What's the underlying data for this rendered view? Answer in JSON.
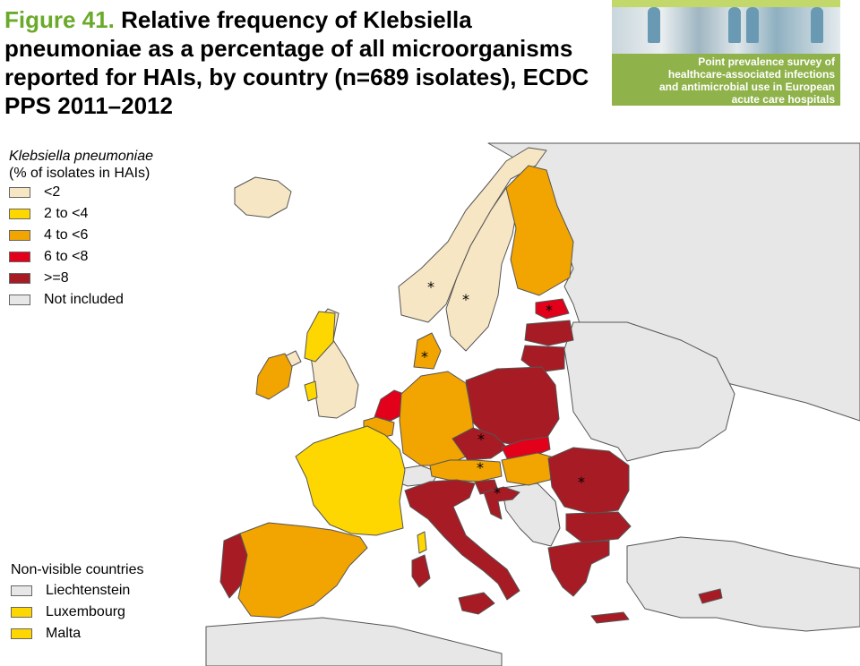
{
  "title": {
    "figure_label": "Figure 41.",
    "text": "Relative frequency of Klebsiella pneumoniae as a percentage of all microorganisms reported for HAIs, by country (n=689 isolates), ECDC PPS 2011–2012"
  },
  "report_badge": {
    "lines": [
      "Point prevalence survey of",
      "healthcare-associated infections",
      "and antimicrobial use in European",
      "acute care hospitals"
    ]
  },
  "legend": {
    "title_italic": "Klebsiella pneumoniae",
    "title_rest": "(% of isolates in HAIs)",
    "items": [
      {
        "label": "<2",
        "color": "#f7e6c4"
      },
      {
        "label": "2 to <4",
        "color": "#ffd700"
      },
      {
        "label": "4 to <6",
        "color": "#f2a400"
      },
      {
        "label": "6 to <8",
        "color": "#e2001a"
      },
      {
        "label": ">=8",
        "color": "#a71b24"
      },
      {
        "label": "Not included",
        "color": "#e7e7e7"
      }
    ]
  },
  "non_visible": {
    "title": "Non-visible countries",
    "items": [
      {
        "label": "Liechtenstein",
        "color": "#e7e7e7"
      },
      {
        "label": "Luxembourg",
        "color": "#ffd700"
      },
      {
        "label": "Malta",
        "color": "#ffd700"
      }
    ]
  },
  "markers": {
    "symbol": "*"
  }
}
